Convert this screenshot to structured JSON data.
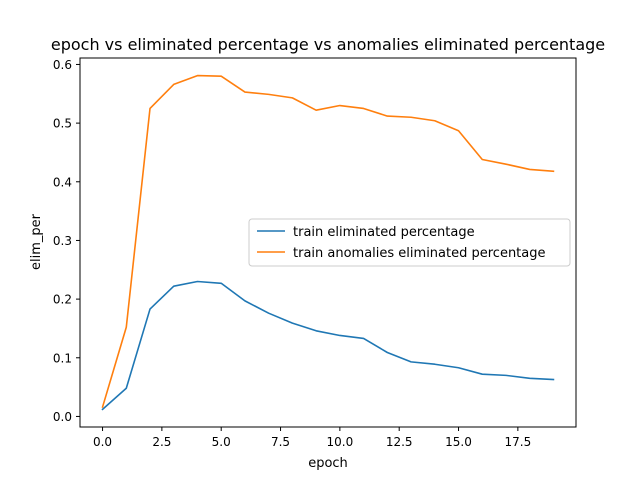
{
  "chart_data": {
    "type": "line",
    "title": "epoch vs eliminated percentage vs anomalies eliminated percentage",
    "xlabel": "epoch",
    "ylabel": "elim_per",
    "xlim": [
      -0.95,
      19.95
    ],
    "ylim": [
      -0.018,
      0.611
    ],
    "xticks": [
      0,
      2.5,
      5,
      7.5,
      10,
      12.5,
      15,
      17.5
    ],
    "xtick_labels": [
      "0.0",
      "2.5",
      "5.0",
      "7.5",
      "10.0",
      "12.5",
      "15.0",
      "17.5"
    ],
    "yticks": [
      0,
      0.1,
      0.2,
      0.3,
      0.4,
      0.5,
      0.6
    ],
    "ytick_labels": [
      "0.0",
      "0.1",
      "0.2",
      "0.3",
      "0.4",
      "0.5",
      "0.6"
    ],
    "grid": false,
    "legend_position": "center-right",
    "x": [
      0,
      1,
      2,
      3,
      4,
      5,
      6,
      7,
      8,
      9,
      10,
      11,
      12,
      13,
      14,
      15,
      16,
      17,
      18,
      19
    ],
    "series": [
      {
        "name": "train eliminated percentage",
        "color": "#1f77b4",
        "values": [
          0.012,
          0.048,
          0.183,
          0.222,
          0.23,
          0.227,
          0.197,
          0.176,
          0.159,
          0.146,
          0.138,
          0.133,
          0.109,
          0.093,
          0.089,
          0.083,
          0.072,
          0.07,
          0.065,
          0.063
        ]
      },
      {
        "name": "train anomalies eliminated percentage",
        "color": "#ff7f0e",
        "values": [
          0.016,
          0.152,
          0.525,
          0.566,
          0.581,
          0.58,
          0.553,
          0.549,
          0.543,
          0.522,
          0.53,
          0.525,
          0.512,
          0.51,
          0.504,
          0.487,
          0.438,
          0.43,
          0.421,
          0.418
        ]
      }
    ]
  }
}
